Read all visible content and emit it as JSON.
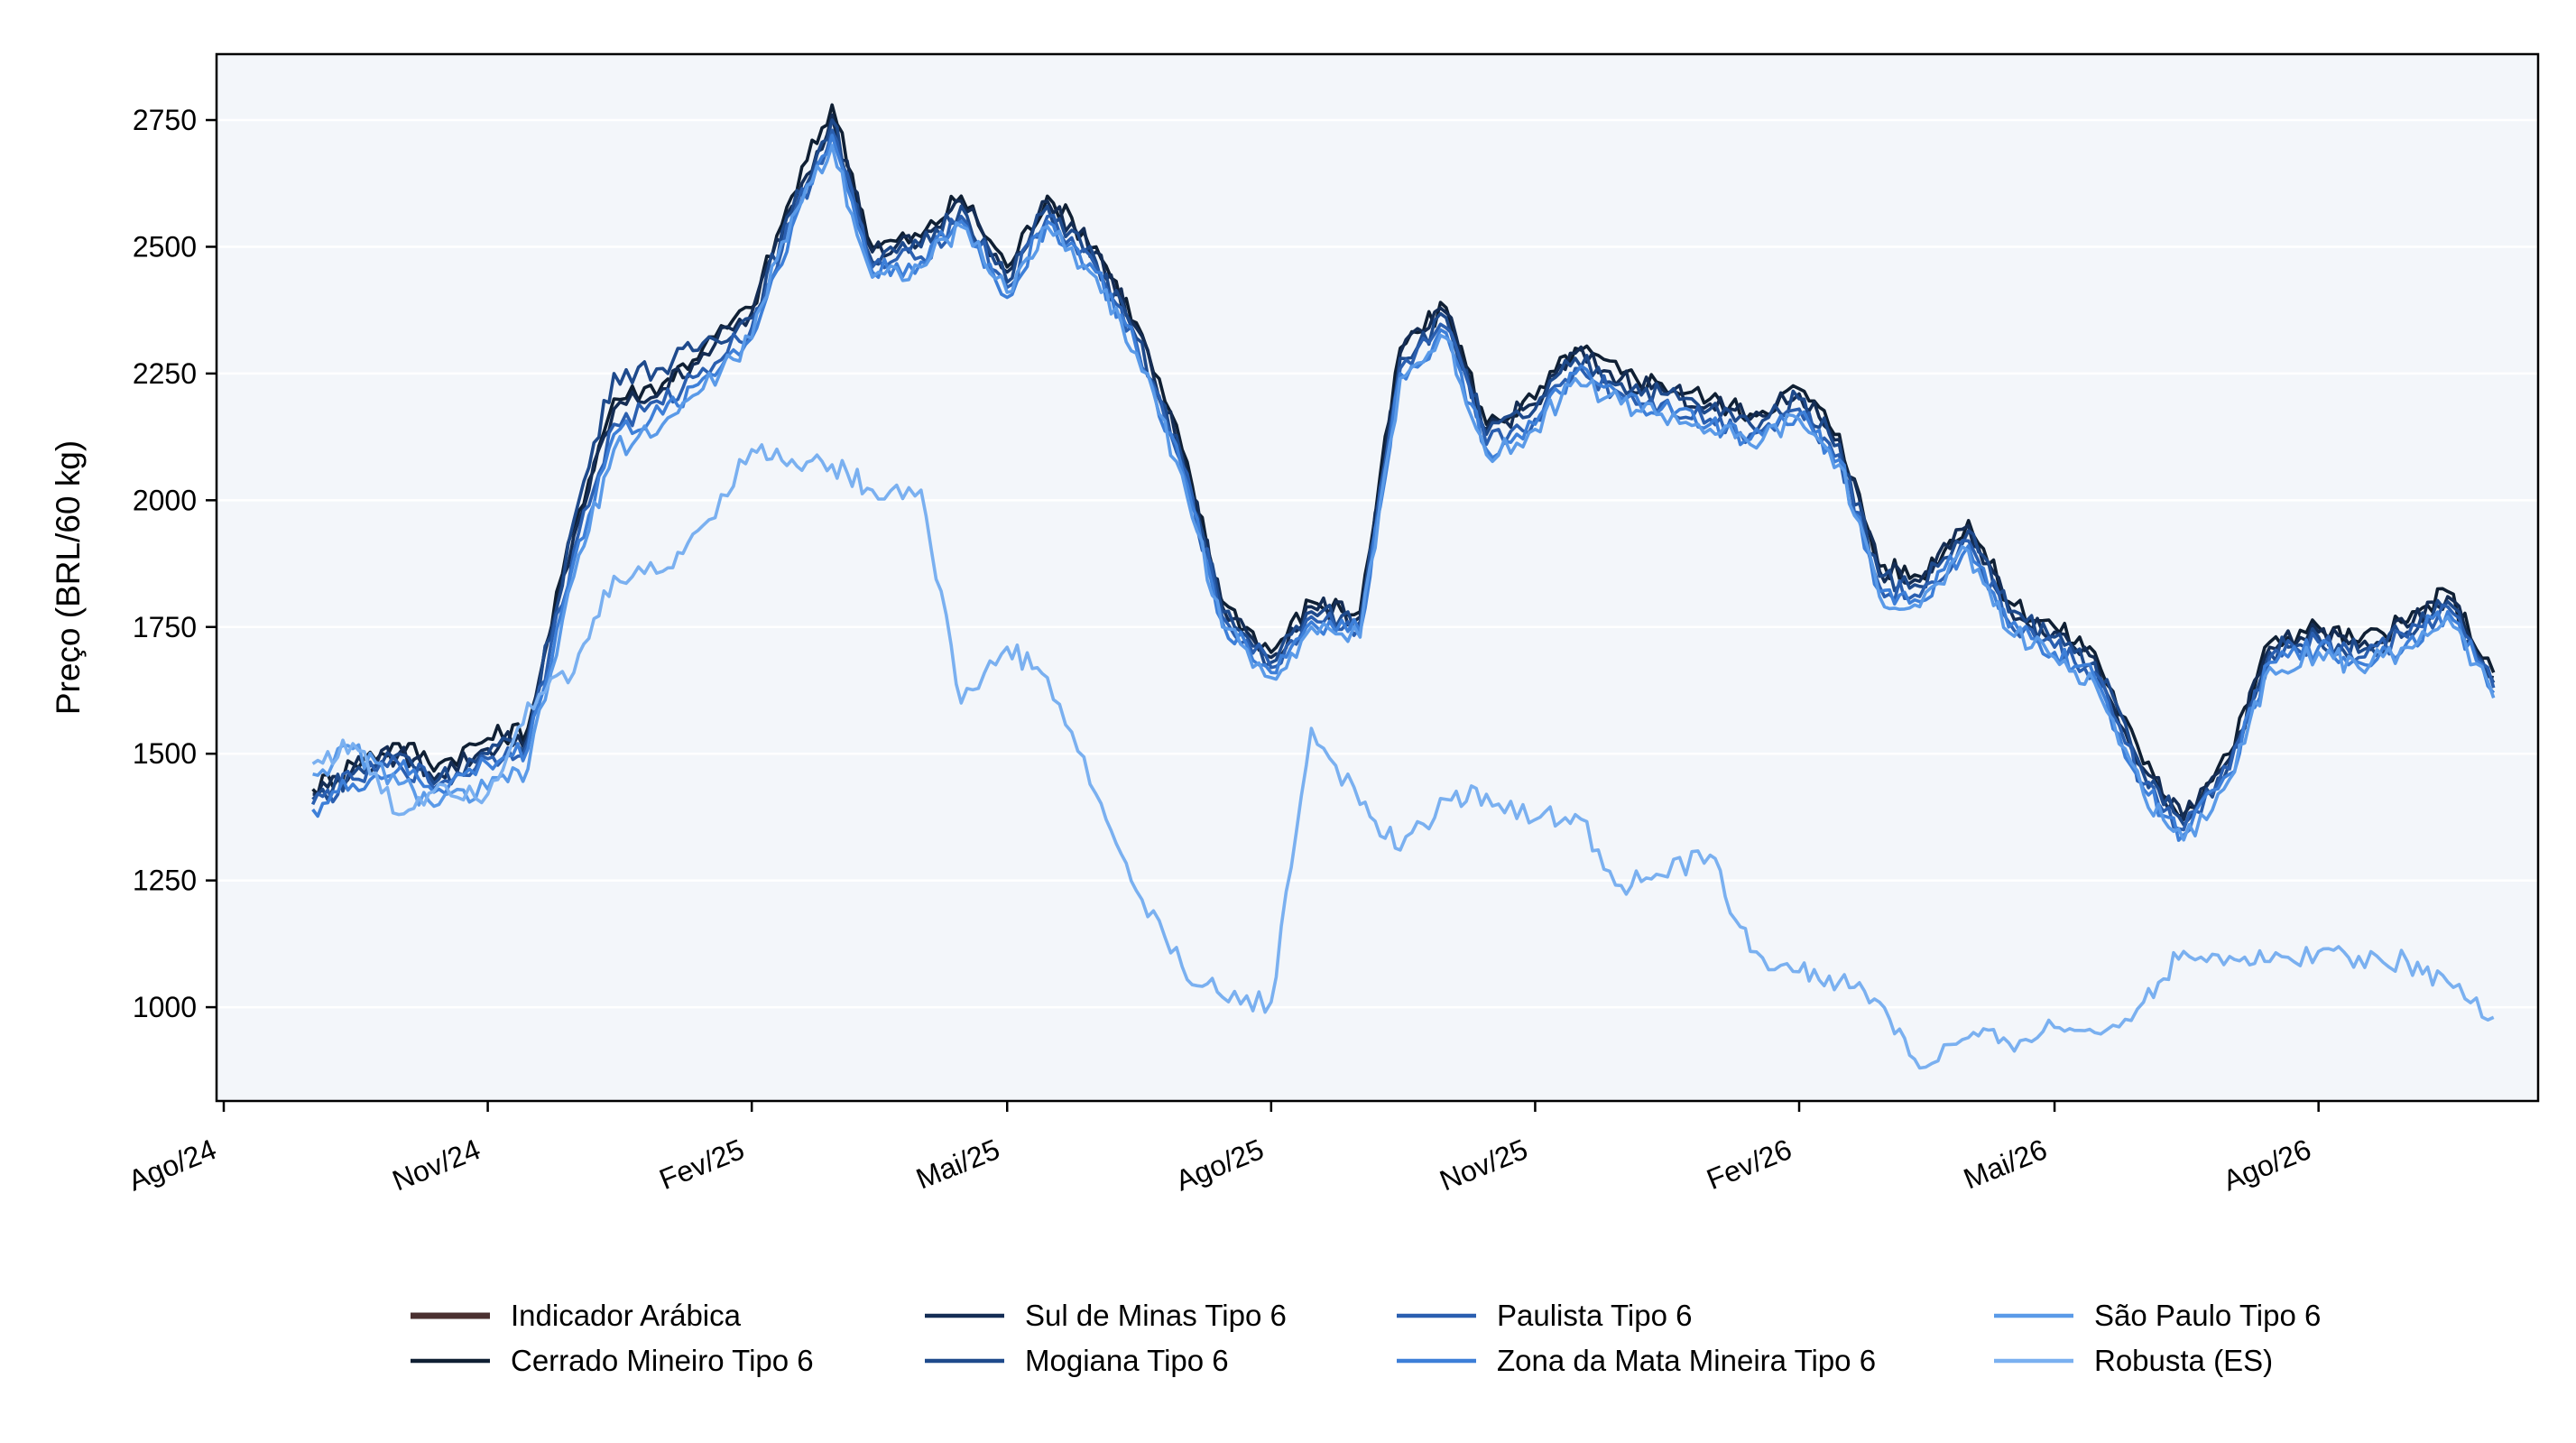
{
  "chart_data": {
    "type": "line",
    "title": "",
    "xlabel": "",
    "ylabel": "Preço (BRL/60 kg)",
    "x_ticks": [
      "Ago/24",
      "Nov/24",
      "Fev/25",
      "Mai/25",
      "Ago/25",
      "Nov/25",
      "Fev/26",
      "Mai/26",
      "Ago/26"
    ],
    "x_tick_dates": [
      "2024-08-01",
      "2024-11-01",
      "2025-02-01",
      "2025-05-01",
      "2025-08-01",
      "2025-11-01",
      "2026-02-01",
      "2026-05-01",
      "2026-08-01"
    ],
    "xlim": [
      "2024-08-01",
      "2026-10-14"
    ],
    "y_ticks": [
      1000,
      1250,
      1500,
      1750,
      2000,
      2250,
      2500,
      2750
    ],
    "ylim": [
      815,
      2880
    ],
    "grid": "horizontal",
    "background": "#f3f6fa",
    "legend_position": "bottom-center",
    "legend_columns": 4,
    "series": [
      {
        "name": "Indicador Arábica",
        "color": "#4a3030",
        "legend_only": true,
        "values": []
      },
      {
        "name": "Cerrado Mineiro Tipo 6",
        "color": "#0f1f33",
        "x": [
          "2024-09-01",
          "2024-09-15",
          "2024-10-01",
          "2024-10-15",
          "2024-11-01",
          "2024-11-15",
          "2024-12-01",
          "2024-12-15",
          "2025-01-01",
          "2025-01-15",
          "2025-02-01",
          "2025-02-15",
          "2025-03-01",
          "2025-03-15",
          "2025-04-01",
          "2025-04-15",
          "2025-05-01",
          "2025-05-15",
          "2025-06-01",
          "2025-06-15",
          "2025-07-01",
          "2025-07-15",
          "2025-08-01",
          "2025-08-15",
          "2025-09-01",
          "2025-09-15",
          "2025-10-01",
          "2025-10-15",
          "2025-11-01",
          "2025-11-15",
          "2025-12-01",
          "2025-12-15",
          "2026-01-01",
          "2026-01-15",
          "2026-02-01",
          "2026-02-15",
          "2026-03-01",
          "2026-03-15",
          "2026-04-01",
          "2026-04-15",
          "2026-05-01",
          "2026-05-15",
          "2026-06-01",
          "2026-06-15",
          "2026-07-01",
          "2026-07-15",
          "2026-08-01",
          "2026-08-15",
          "2026-09-01",
          "2026-09-15",
          "2026-10-01"
        ],
        "values": [
          1430,
          1480,
          1520,
          1480,
          1530,
          1550,
          1950,
          2200,
          2230,
          2300,
          2380,
          2600,
          2780,
          2500,
          2520,
          2600,
          2460,
          2600,
          2500,
          2350,
          2100,
          1800,
          1700,
          1800,
          1780,
          2300,
          2380,
          2150,
          2200,
          2300,
          2250,
          2230,
          2200,
          2170,
          2220,
          2130,
          1870,
          1850,
          1960,
          1800,
          1750,
          1700,
          1480,
          1380,
          1500,
          1720,
          1750,
          1720,
          1760,
          1820,
          1660
        ]
      },
      {
        "name": "Sul de Minas Tipo 6",
        "color": "#142d55",
        "x": [
          "2024-09-01",
          "2024-09-15",
          "2024-10-01",
          "2024-10-15",
          "2024-11-01",
          "2024-11-15",
          "2024-12-01",
          "2024-12-15",
          "2025-01-01",
          "2025-01-15",
          "2025-02-01",
          "2025-02-15",
          "2025-03-01",
          "2025-03-15",
          "2025-04-01",
          "2025-04-15",
          "2025-05-01",
          "2025-05-15",
          "2025-06-01",
          "2025-06-15",
          "2025-07-01",
          "2025-07-15",
          "2025-08-01",
          "2025-08-15",
          "2025-09-01",
          "2025-09-15",
          "2025-10-01",
          "2025-10-15",
          "2025-11-01",
          "2025-11-15",
          "2025-12-01",
          "2025-12-15",
          "2026-01-01",
          "2026-01-15",
          "2026-02-01",
          "2026-02-15",
          "2026-03-01",
          "2026-03-15",
          "2026-04-01",
          "2026-04-15",
          "2026-05-01",
          "2026-05-15",
          "2026-06-01",
          "2026-06-15",
          "2026-07-01",
          "2026-07-15",
          "2026-08-01",
          "2026-08-15",
          "2026-09-01",
          "2026-09-15",
          "2026-10-01"
        ],
        "values": [
          1420,
          1470,
          1500,
          1460,
          1510,
          1540,
          1930,
          2180,
          2220,
          2290,
          2370,
          2580,
          2760,
          2490,
          2510,
          2590,
          2450,
          2590,
          2490,
          2340,
          2090,
          1790,
          1690,
          1790,
          1770,
          2290,
          2370,
          2140,
          2190,
          2290,
          2240,
          2220,
          2190,
          2160,
          2210,
          2120,
          1860,
          1840,
          1950,
          1790,
          1740,
          1690,
          1470,
          1370,
          1490,
          1710,
          1740,
          1710,
          1750,
          1810,
          1650
        ]
      },
      {
        "name": "Mogiana Tipo 6",
        "color": "#1e4a8c",
        "x": [
          "2024-09-01",
          "2024-09-15",
          "2024-10-01",
          "2024-10-15",
          "2024-11-01",
          "2024-11-15",
          "2024-12-01",
          "2024-12-15",
          "2025-01-01",
          "2025-01-15",
          "2025-02-01",
          "2025-02-15",
          "2025-03-01",
          "2025-03-15",
          "2025-04-01",
          "2025-04-15",
          "2025-05-01",
          "2025-05-15",
          "2025-06-01",
          "2025-06-15",
          "2025-07-01",
          "2025-07-15",
          "2025-08-01",
          "2025-08-15",
          "2025-09-01",
          "2025-09-15",
          "2025-10-01",
          "2025-10-15",
          "2025-11-01",
          "2025-11-15",
          "2025-12-01",
          "2025-12-15",
          "2026-01-01",
          "2026-01-15",
          "2026-02-01",
          "2026-02-15",
          "2026-03-01",
          "2026-03-15",
          "2026-04-01",
          "2026-04-15",
          "2026-05-01",
          "2026-05-15",
          "2026-06-01",
          "2026-06-15",
          "2026-07-01",
          "2026-07-15",
          "2026-08-01",
          "2026-08-15",
          "2026-09-01",
          "2026-09-15",
          "2026-10-01"
        ],
        "values": [
          1410,
          1460,
          1500,
          1450,
          1500,
          1530,
          1960,
          2250,
          2260,
          2310,
          2360,
          2570,
          2750,
          2470,
          2500,
          2580,
          2430,
          2580,
          2470,
          2320,
          2080,
          1780,
          1680,
          1780,
          1760,
          2280,
          2360,
          2130,
          2180,
          2280,
          2230,
          2210,
          2180,
          2150,
          2200,
          2110,
          1850,
          1830,
          1940,
          1780,
          1730,
          1680,
          1460,
          1360,
          1480,
          1700,
          1730,
          1700,
          1740,
          1800,
          1640
        ]
      },
      {
        "name": "Paulista Tipo 6",
        "color": "#2a5fb0",
        "x": [
          "2024-09-01",
          "2024-09-15",
          "2024-10-01",
          "2024-10-15",
          "2024-11-01",
          "2024-11-15",
          "2024-12-01",
          "2024-12-15",
          "2025-01-01",
          "2025-01-15",
          "2025-02-01",
          "2025-02-15",
          "2025-03-01",
          "2025-03-15",
          "2025-04-01",
          "2025-04-15",
          "2025-05-01",
          "2025-05-15",
          "2025-06-01",
          "2025-06-15",
          "2025-07-01",
          "2025-07-15",
          "2025-08-01",
          "2025-08-15",
          "2025-09-01",
          "2025-09-15",
          "2025-10-01",
          "2025-10-15",
          "2025-11-01",
          "2025-11-15",
          "2025-12-01",
          "2025-12-15",
          "2026-01-01",
          "2026-01-15",
          "2026-02-01",
          "2026-02-15",
          "2026-03-01",
          "2026-03-15",
          "2026-04-01",
          "2026-04-15",
          "2026-05-01",
          "2026-05-15",
          "2026-06-01",
          "2026-06-15",
          "2026-07-01",
          "2026-07-15",
          "2026-08-01",
          "2026-08-15",
          "2026-09-01",
          "2026-09-15",
          "2026-10-01"
        ],
        "values": [
          1400,
          1450,
          1480,
          1440,
          1490,
          1520,
          1900,
          2150,
          2190,
          2260,
          2340,
          2550,
          2730,
          2460,
          2480,
          2560,
          2420,
          2560,
          2460,
          2310,
          2070,
          1770,
          1670,
          1770,
          1750,
          2260,
          2340,
          2110,
          2160,
          2260,
          2210,
          2190,
          2160,
          2130,
          2180,
          2090,
          1830,
          1810,
          1920,
          1760,
          1710,
          1660,
          1440,
          1350,
          1470,
          1690,
          1720,
          1690,
          1730,
          1790,
          1630
        ]
      },
      {
        "name": "Zona da Mata Mineira Tipo 6",
        "color": "#3d7fd8",
        "x": [
          "2024-09-01",
          "2024-09-15",
          "2024-10-01",
          "2024-10-15",
          "2024-11-01",
          "2024-11-15",
          "2024-12-01",
          "2024-12-15",
          "2025-01-01",
          "2025-01-15",
          "2025-02-01",
          "2025-02-15",
          "2025-03-01",
          "2025-03-15",
          "2025-04-01",
          "2025-04-15",
          "2025-05-01",
          "2025-05-15",
          "2025-06-01",
          "2025-06-15",
          "2025-07-01",
          "2025-07-15",
          "2025-08-01",
          "2025-08-15",
          "2025-09-01",
          "2025-09-15",
          "2025-10-01",
          "2025-10-15",
          "2025-11-01",
          "2025-11-15",
          "2025-12-01",
          "2025-12-15",
          "2026-01-01",
          "2026-01-15",
          "2026-02-01",
          "2026-02-15",
          "2026-03-01",
          "2026-03-15",
          "2026-04-01",
          "2026-04-15",
          "2026-05-01",
          "2026-05-15",
          "2026-06-01",
          "2026-06-15",
          "2026-07-01",
          "2026-07-15",
          "2026-08-01",
          "2026-08-15",
          "2026-09-01",
          "2026-09-15",
          "2026-10-01"
        ],
        "values": [
          1390,
          1440,
          1470,
          1430,
          1480,
          1510,
          1880,
          2130,
          2170,
          2240,
          2320,
          2540,
          2720,
          2450,
          2470,
          2550,
          2400,
          2550,
          2450,
          2300,
          2060,
          1760,
          1660,
          1760,
          1740,
          2250,
          2330,
          2100,
          2150,
          2250,
          2200,
          2180,
          2150,
          2120,
          2170,
          2080,
          1820,
          1800,
          1910,
          1750,
          1700,
          1650,
          1430,
          1340,
          1460,
          1680,
          1710,
          1680,
          1720,
          1780,
          1620
        ]
      },
      {
        "name": "São Paulo Tipo 6",
        "color": "#5a9ae8",
        "x": [
          "2024-09-01",
          "2024-09-15",
          "2024-10-01",
          "2024-10-15",
          "2024-11-01",
          "2024-11-15",
          "2024-12-01",
          "2024-12-15",
          "2025-01-01",
          "2025-01-15",
          "2025-02-01",
          "2025-02-15",
          "2025-03-01",
          "2025-03-15",
          "2025-04-01",
          "2025-04-15",
          "2025-05-01",
          "2025-05-15",
          "2025-06-01",
          "2025-06-15",
          "2025-07-01",
          "2025-07-15",
          "2025-08-01",
          "2025-08-15",
          "2025-09-01",
          "2025-09-15",
          "2025-10-01",
          "2025-10-15",
          "2025-11-01",
          "2025-11-15",
          "2025-12-01",
          "2025-12-15",
          "2026-01-01",
          "2026-01-15",
          "2026-02-01",
          "2026-02-15",
          "2026-03-01",
          "2026-03-15",
          "2026-04-01",
          "2026-04-15",
          "2026-05-01",
          "2026-05-15",
          "2026-06-01",
          "2026-06-15",
          "2026-07-01",
          "2026-07-15",
          "2026-08-01",
          "2026-08-15",
          "2026-09-01",
          "2026-09-15",
          "2026-10-01"
        ],
        "values": [
          1460,
          1510,
          1440,
          1400,
          1430,
          1470,
          1850,
          2100,
          2150,
          2220,
          2320,
          2560,
          2700,
          2440,
          2460,
          2540,
          2410,
          2540,
          2440,
          2290,
          2050,
          1750,
          1650,
          1750,
          1730,
          2240,
          2320,
          2090,
          2140,
          2240,
          2190,
          2170,
          2140,
          2110,
          2160,
          2070,
          1810,
          1790,
          1900,
          1740,
          1690,
          1640,
          1420,
          1330,
          1450,
          1670,
          1700,
          1670,
          1710,
          1770,
          1610
        ]
      },
      {
        "name": "Robusta (ES)",
        "color": "#7ab0f0",
        "x": [
          "2024-09-01",
          "2024-09-15",
          "2024-10-01",
          "2024-10-15",
          "2024-11-01",
          "2024-11-15",
          "2024-12-01",
          "2024-12-15",
          "2025-01-01",
          "2025-01-15",
          "2025-02-01",
          "2025-02-15",
          "2025-03-01",
          "2025-03-15",
          "2025-04-01",
          "2025-04-15",
          "2025-05-01",
          "2025-05-15",
          "2025-06-01",
          "2025-06-15",
          "2025-07-01",
          "2025-07-15",
          "2025-08-01",
          "2025-08-15",
          "2025-09-01",
          "2025-09-15",
          "2025-10-01",
          "2025-10-15",
          "2025-11-01",
          "2025-11-15",
          "2025-12-01",
          "2025-12-15",
          "2026-01-01",
          "2026-01-15",
          "2026-02-01",
          "2026-02-15",
          "2026-03-01",
          "2026-03-15",
          "2026-04-01",
          "2026-04-15",
          "2026-05-01",
          "2026-05-15",
          "2026-06-01",
          "2026-06-15",
          "2026-07-01",
          "2026-07-15",
          "2026-08-01",
          "2026-08-15",
          "2026-09-01",
          "2026-09-15",
          "2026-10-01"
        ],
        "values": [
          1480,
          1520,
          1380,
          1440,
          1420,
          1600,
          1660,
          1850,
          1860,
          1950,
          2100,
          2080,
          2070,
          2020,
          2020,
          1600,
          1710,
          1650,
          1420,
          1230,
          1080,
          1020,
          1010,
          1550,
          1400,
          1310,
          1410,
          1420,
          1370,
          1380,
          1240,
          1260,
          1300,
          1110,
          1070,
          1050,
          1010,
          880,
          940,
          930,
          960,
          950,
          1010,
          1110,
          1100,
          1090,
          1110,
          1100,
          1090,
          1050,
          980
        ]
      }
    ]
  }
}
